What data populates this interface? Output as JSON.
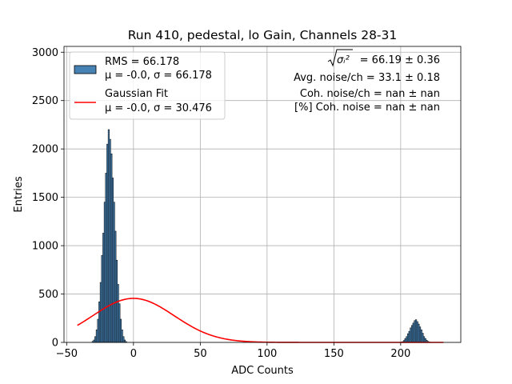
{
  "chart_data": {
    "type": "bar",
    "title": "Run 410, pedestal, lo Gain, Channels 28-31",
    "xlabel": "ADC Counts",
    "ylabel": "Entries",
    "xlim": [
      -52,
      245
    ],
    "ylim": [
      0,
      3060
    ],
    "xticks": [
      -50,
      0,
      50,
      100,
      150,
      200
    ],
    "yticks": [
      0,
      500,
      1000,
      1500,
      2000,
      2500,
      3000
    ],
    "grid": true,
    "legend_position": "top-left",
    "histogram": {
      "name_lines": [
        "RMS = 66.178",
        "μ = -0.0, σ = 66.178"
      ],
      "bin_width": 1,
      "bins": [
        [
          -31,
          10
        ],
        [
          -30,
          25
        ],
        [
          -29,
          60
        ],
        [
          -28,
          130
        ],
        [
          -27,
          240
        ],
        [
          -26,
          420
        ],
        [
          -25,
          620
        ],
        [
          -24,
          900
        ],
        [
          -23,
          1130
        ],
        [
          -22,
          1450
        ],
        [
          -21,
          1750
        ],
        [
          -20,
          2050
        ],
        [
          -19,
          2200
        ],
        [
          -18,
          2100
        ],
        [
          -17,
          1950
        ],
        [
          -16,
          1700
        ],
        [
          -15,
          1450
        ],
        [
          -14,
          1150
        ],
        [
          -13,
          850
        ],
        [
          -12,
          600
        ],
        [
          -11,
          400
        ],
        [
          -10,
          240
        ],
        [
          -9,
          130
        ],
        [
          -8,
          60
        ],
        [
          -7,
          25
        ],
        [
          -6,
          8
        ],
        [
          200,
          3
        ],
        [
          201,
          8
        ],
        [
          202,
          20
        ],
        [
          203,
          40
        ],
        [
          204,
          60
        ],
        [
          205,
          90
        ],
        [
          206,
          115
        ],
        [
          207,
          150
        ],
        [
          208,
          175
        ],
        [
          209,
          200
        ],
        [
          210,
          225
        ],
        [
          211,
          235
        ],
        [
          212,
          215
        ],
        [
          213,
          190
        ],
        [
          214,
          160
        ],
        [
          215,
          130
        ],
        [
          216,
          95
        ],
        [
          217,
          60
        ],
        [
          218,
          40
        ],
        [
          219,
          22
        ],
        [
          220,
          10
        ],
        [
          221,
          4
        ]
      ]
    },
    "fit": {
      "name": "Gaussian Fit",
      "param_line": "μ = -0.0, σ = 30.476",
      "mu": 0.0,
      "sigma": 30.476,
      "peak": 455,
      "x_range": [
        -42,
        232
      ]
    },
    "annotations": [
      {
        "math": "σᵢ²",
        "text": " = 66.19 ± 0.36"
      },
      {
        "text": "Avg. noise/ch = 33.1 ± 0.18"
      },
      {
        "text": "Coh. noise/ch = nan ± nan"
      },
      {
        "text": "[%] Coh. noise = nan ± nan"
      }
    ],
    "colors": {
      "bar_fill": "#4682b4",
      "bar_edge": "#000000",
      "fit_line": "#ff0000",
      "grid": "#b0b0b0"
    }
  }
}
